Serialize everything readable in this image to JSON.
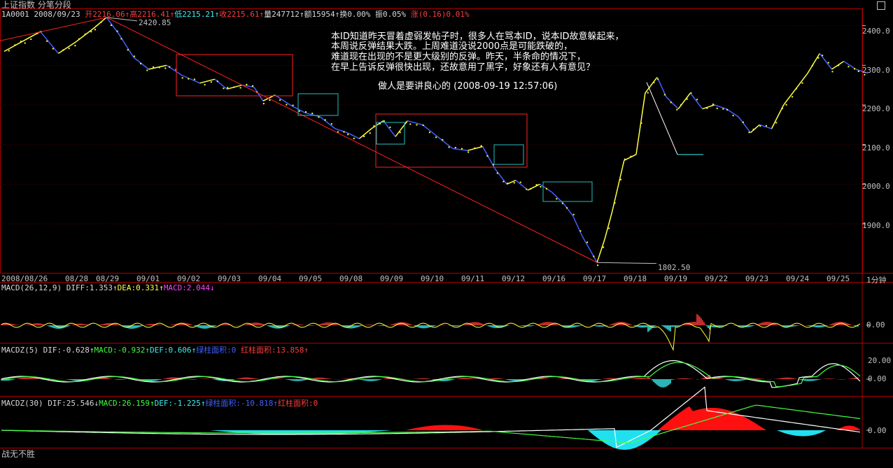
{
  "header": {
    "title": "上证指数",
    "mode": "分笔分段"
  },
  "quote": {
    "code": "1A0001",
    "date": "2008/09/23",
    "open_label": "开",
    "open": "2216.06",
    "high_label": "高",
    "high": "2216.41",
    "low_label": "低",
    "low": "2215.21",
    "close_label": "收",
    "close": "2215.61",
    "vol_label": "量",
    "vol": "247712",
    "amt_label": "额",
    "amt": "15954",
    "turn_label": "换",
    "turn": "0.00%",
    "amp_label": "振",
    "amp": "0.05%",
    "chg_label": "涨",
    "chg": "(0.16)0.01%"
  },
  "annotation": {
    "lines": [
      "本ID知道昨天冒着虚弱发帖子时，很多人在骂本ID，说本ID故意躲起来，",
      "本周说反弹结果大跌。上周难道没说2000点是可能跌破的，",
      "难道现在出现的不是更大级别的反弹。昨天，半条命的情况下，",
      "在早上告诉反弹很快出现，还故意用了黑字，好象还有人有意见？"
    ],
    "signature": "做人是要讲良心的  (2008-09-19 12:57:06)"
  },
  "price_labels": {
    "high": "2420.85",
    "low": "1802.50"
  },
  "main_axis": [
    "2400.0",
    "2300.0",
    "2200.0",
    "2100.0",
    "2000.0",
    "1900.0"
  ],
  "x_axis": [
    "2008/08/26",
    "08/28",
    "08/29",
    "09/01",
    "09/02",
    "09/03",
    "09/04",
    "09/05",
    "09/08",
    "09/09",
    "09/10",
    "09/11",
    "09/12",
    "09/16",
    "09/17",
    "09/18",
    "09/19",
    "09/22",
    "09/23",
    "09/24",
    "09/25"
  ],
  "period": "1分钟",
  "macd": {
    "name": "MACD(26,12,9)",
    "diff": "DIFF:1.353",
    "dea": "DEA:0.331",
    "macd": "MACD:2.044",
    "axis": [
      "0.00"
    ]
  },
  "macdz5": {
    "name": "MACDZ(5)",
    "dif": "DIF:-0.628",
    "macd": "MACD:-0.932",
    "def": "DEF:0.606",
    "green_area": "绿柱面积:0",
    "red_area": "红柱面积:13.858",
    "axis": [
      "20.00",
      "0.00"
    ]
  },
  "macdz30": {
    "name": "MACDZ(30)",
    "dif": "DIF:25.546",
    "macd": "MACD:26.159",
    "def": "DEF:-1.225",
    "green_area": "绿柱面积:-10.818",
    "red_area": "红柱面积:0",
    "axis": [
      "0.00"
    ]
  },
  "footer": "战无不胜",
  "chart_data": {
    "type": "line",
    "ylim": [
      1780,
      2440
    ],
    "price_path": [
      [
        0,
        2335
      ],
      [
        0.6,
        2360
      ],
      [
        1.2,
        2385
      ],
      [
        1.8,
        2330
      ],
      [
        2.4,
        2360
      ],
      [
        3.0,
        2395
      ],
      [
        3.4,
        2420.85
      ],
      [
        3.8,
        2380
      ],
      [
        4.3,
        2320
      ],
      [
        4.8,
        2290
      ],
      [
        5.4,
        2300
      ],
      [
        5.9,
        2275
      ],
      [
        6.5,
        2255
      ],
      [
        7.0,
        2265
      ],
      [
        7.4,
        2240
      ],
      [
        7.9,
        2250
      ],
      [
        8.3,
        2245
      ],
      [
        8.6,
        2210
      ],
      [
        9.0,
        2225
      ],
      [
        9.5,
        2200
      ],
      [
        10.0,
        2180
      ],
      [
        10.5,
        2170
      ],
      [
        11.0,
        2140
      ],
      [
        11.4,
        2130
      ],
      [
        11.8,
        2115
      ],
      [
        12.2,
        2140
      ],
      [
        12.6,
        2160
      ],
      [
        13.0,
        2120
      ],
      [
        13.4,
        2160
      ],
      [
        13.9,
        2150
      ],
      [
        14.4,
        2120
      ],
      [
        14.9,
        2090
      ],
      [
        15.4,
        2085
      ],
      [
        15.9,
        2095
      ],
      [
        16.3,
        2040
      ],
      [
        16.7,
        2000
      ],
      [
        17.0,
        2010
      ],
      [
        17.4,
        1985
      ],
      [
        17.8,
        2000
      ],
      [
        18.2,
        1980
      ],
      [
        18.6,
        1950
      ],
      [
        18.9,
        1920
      ],
      [
        19.2,
        1870
      ],
      [
        19.5,
        1830
      ],
      [
        19.7,
        1802.5
      ],
      [
        19.95,
        1860
      ],
      [
        20.2,
        1930
      ],
      [
        20.6,
        2060
      ],
      [
        21.0,
        2075
      ],
      [
        21.3,
        2230
      ],
      [
        21.7,
        2270
      ],
      [
        22.0,
        2220
      ],
      [
        22.4,
        2190
      ],
      [
        22.8,
        2230
      ],
      [
        23.2,
        2190
      ],
      [
        23.6,
        2200
      ],
      [
        24.0,
        2190
      ],
      [
        24.4,
        2170
      ],
      [
        24.8,
        2130
      ],
      [
        25.1,
        2150
      ],
      [
        25.5,
        2140
      ],
      [
        25.9,
        2200
      ],
      [
        26.3,
        2240
      ],
      [
        26.7,
        2280
      ],
      [
        27.1,
        2330
      ],
      [
        27.5,
        2290
      ],
      [
        27.9,
        2310
      ],
      [
        28.3,
        2290
      ],
      [
        28.7,
        2280
      ]
    ]
  },
  "colors": {
    "up": "#ff3c3c",
    "down": "#3cf0f0",
    "price_up": "#ffff40",
    "price_down": "#4060ff",
    "frame": "#b00000"
  }
}
